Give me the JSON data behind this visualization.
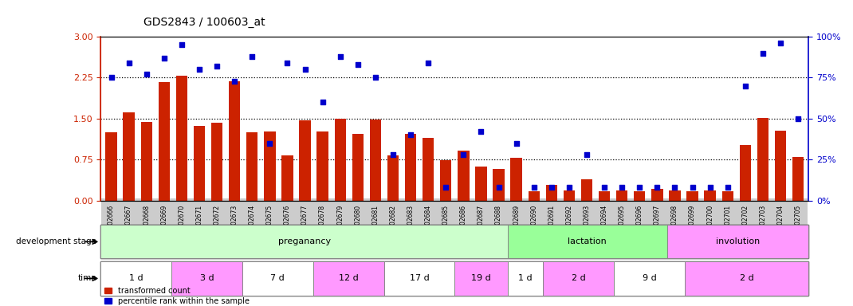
{
  "title": "GDS2843 / 100603_at",
  "samples": [
    "GSM202666",
    "GSM202667",
    "GSM202668",
    "GSM202669",
    "GSM202670",
    "GSM202671",
    "GSM202672",
    "GSM202673",
    "GSM202674",
    "GSM202675",
    "GSM202676",
    "GSM202677",
    "GSM202678",
    "GSM202679",
    "GSM202680",
    "GSM202681",
    "GSM202682",
    "GSM202683",
    "GSM202684",
    "GSM202685",
    "GSM202686",
    "GSM202687",
    "GSM202688",
    "GSM202689",
    "GSM202690",
    "GSM202691",
    "GSM202692",
    "GSM202693",
    "GSM202694",
    "GSM202695",
    "GSM202696",
    "GSM202697",
    "GSM202698",
    "GSM202699",
    "GSM202700",
    "GSM202701",
    "GSM202702",
    "GSM202703",
    "GSM202704",
    "GSM202705"
  ],
  "transformed_count": [
    1.25,
    1.62,
    1.44,
    2.17,
    2.28,
    1.37,
    1.43,
    2.18,
    1.25,
    1.27,
    0.82,
    1.47,
    1.27,
    1.49,
    1.22,
    1.48,
    0.82,
    1.22,
    1.15,
    0.74,
    0.92,
    0.62,
    0.57,
    0.78,
    0.17,
    0.29,
    0.19,
    0.38,
    0.17,
    0.19,
    0.17,
    0.21,
    0.19,
    0.17,
    0.19,
    0.17,
    1.02,
    1.51,
    1.28,
    0.79
  ],
  "percentile_rank": [
    75,
    84,
    77,
    87,
    95,
    80,
    82,
    73,
    88,
    35,
    84,
    80,
    60,
    88,
    83,
    75,
    28,
    40,
    84,
    8,
    28,
    42,
    8,
    35,
    8,
    8,
    8,
    28,
    8,
    8,
    8,
    8,
    8,
    8,
    8,
    8,
    70,
    90,
    96,
    50
  ],
  "bar_color": "#cc2200",
  "dot_color": "#0000cc",
  "left_yticks": [
    0,
    0.75,
    1.5,
    2.25,
    3
  ],
  "right_yticks": [
    0,
    25,
    50,
    75,
    100
  ],
  "left_ylim": [
    0,
    3
  ],
  "right_ylim": [
    0,
    100
  ],
  "hlines": [
    0.75,
    1.5,
    2.25
  ],
  "development_stages": [
    {
      "label": "preganancy",
      "start": 0,
      "end": 23,
      "color": "#ccffcc"
    },
    {
      "label": "lactation",
      "start": 23,
      "end": 32,
      "color": "#99ff99"
    },
    {
      "label": "involution",
      "start": 32,
      "end": 40,
      "color": "#ff99ff"
    }
  ],
  "time_periods": [
    {
      "label": "1 d",
      "start": 0,
      "end": 4,
      "color": "#ffffff"
    },
    {
      "label": "3 d",
      "start": 4,
      "end": 8,
      "color": "#ff99ff"
    },
    {
      "label": "7 d",
      "start": 8,
      "end": 12,
      "color": "#ffffff"
    },
    {
      "label": "12 d",
      "start": 12,
      "end": 16,
      "color": "#ff99ff"
    },
    {
      "label": "17 d",
      "start": 16,
      "end": 20,
      "color": "#ffffff"
    },
    {
      "label": "19 d",
      "start": 20,
      "end": 23,
      "color": "#ff99ff"
    },
    {
      "label": "1 d",
      "start": 23,
      "end": 25,
      "color": "#ffffff"
    },
    {
      "label": "2 d",
      "start": 25,
      "end": 29,
      "color": "#ff99ff"
    },
    {
      "label": "9 d",
      "start": 29,
      "end": 33,
      "color": "#ffffff"
    },
    {
      "label": "2 d",
      "start": 33,
      "end": 40,
      "color": "#ff99ff"
    }
  ],
  "bg_color": "#ffffff",
  "title_color": "#000000",
  "left_axis_color": "#cc2200",
  "right_axis_color": "#0000cc",
  "tick_bg_color": "#cccccc"
}
